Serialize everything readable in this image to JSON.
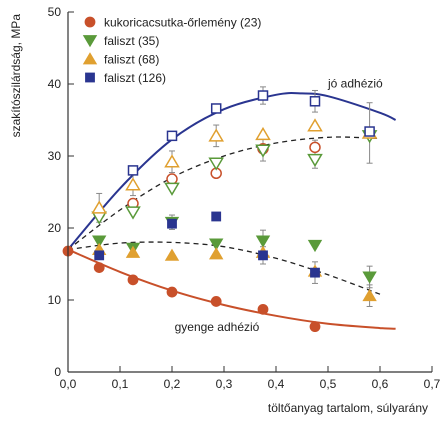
{
  "chart_data": {
    "type": "scatter",
    "xlabel": "töltőanyag tartalom, súlyarány",
    "ylabel": "szakítószilárdság, MPa",
    "xlim": [
      0.0,
      0.7
    ],
    "ylim": [
      0,
      50
    ],
    "x_ticks": [
      "0,0",
      "0,1",
      "0,2",
      "0,3",
      "0,4",
      "0,5",
      "0,6",
      "0,7"
    ],
    "y_ticks": [
      "0",
      "10",
      "20",
      "30",
      "40",
      "50"
    ],
    "grid": false,
    "legend_position": "top-left",
    "series": [
      {
        "name": "kukoricacsutka-őrlemény (23)",
        "marker": "circle",
        "filled": true,
        "color": "#c8502a",
        "points": [
          [
            0.0,
            16.8
          ],
          [
            0.06,
            14.5
          ],
          [
            0.125,
            12.8
          ],
          [
            0.2,
            11.1
          ],
          [
            0.285,
            9.8
          ],
          [
            0.375,
            8.7
          ],
          [
            0.475,
            6.3
          ]
        ]
      },
      {
        "name": "faliszt (35)",
        "marker": "triangle-down",
        "filled": true,
        "color": "#5a9a3a",
        "points": [
          [
            0.06,
            18.2
          ],
          [
            0.125,
            17.2
          ],
          [
            0.2,
            20.8
          ],
          [
            0.285,
            17.8
          ],
          [
            0.375,
            18.2
          ],
          [
            0.475,
            17.6
          ],
          [
            0.58,
            13.2
          ]
        ]
      },
      {
        "name": "faliszt (68)",
        "marker": "triangle",
        "filled": true,
        "color": "#e0a030",
        "points": [
          [
            0.06,
            17.0
          ],
          [
            0.125,
            16.6
          ],
          [
            0.2,
            16.2
          ],
          [
            0.285,
            16.4
          ],
          [
            0.375,
            16.6
          ],
          [
            0.475,
            14.0
          ],
          [
            0.58,
            10.6
          ]
        ]
      },
      {
        "name": "faliszt (126)",
        "marker": "square",
        "filled": true,
        "color": "#2a3590",
        "points": [
          [
            0.06,
            16.2
          ],
          [
            0.2,
            20.6
          ],
          [
            0.285,
            21.6
          ],
          [
            0.375,
            16.2
          ],
          [
            0.475,
            13.8
          ]
        ]
      },
      {
        "marker": "circle",
        "filled": false,
        "color": "#c8502a",
        "points": [
          [
            0.06,
            22.0
          ],
          [
            0.125,
            23.4
          ],
          [
            0.2,
            26.8
          ],
          [
            0.285,
            27.6
          ],
          [
            0.375,
            31.0
          ],
          [
            0.475,
            31.2
          ]
        ]
      },
      {
        "marker": "triangle-down",
        "filled": false,
        "color": "#5a9a3a",
        "points": [
          [
            0.06,
            21.5
          ],
          [
            0.125,
            22.2
          ],
          [
            0.2,
            25.5
          ],
          [
            0.285,
            29.0
          ],
          [
            0.375,
            30.8
          ],
          [
            0.475,
            29.5
          ],
          [
            0.58,
            32.8
          ]
        ]
      },
      {
        "marker": "triangle",
        "filled": false,
        "color": "#e0a030",
        "points": [
          [
            0.06,
            22.8
          ],
          [
            0.125,
            26.0
          ],
          [
            0.2,
            29.2
          ],
          [
            0.285,
            32.8
          ],
          [
            0.375,
            33.0
          ],
          [
            0.475,
            34.2
          ],
          [
            0.58,
            33.2
          ]
        ]
      },
      {
        "marker": "square",
        "filled": false,
        "color": "#2a3590",
        "points": [
          [
            0.125,
            28.0
          ],
          [
            0.2,
            32.8
          ],
          [
            0.285,
            36.6
          ],
          [
            0.375,
            38.4
          ],
          [
            0.475,
            37.6
          ],
          [
            0.58,
            33.4
          ]
        ]
      }
    ],
    "error_bars": [
      [
        0.06,
        22.8,
        2.0
      ],
      [
        0.125,
        26.0,
        1.5
      ],
      [
        0.2,
        29.2,
        1.5
      ],
      [
        0.285,
        32.8,
        1.5
      ],
      [
        0.375,
        38.4,
        1.2
      ],
      [
        0.475,
        37.6,
        1.5
      ],
      [
        0.58,
        33.2,
        4.2
      ],
      [
        0.375,
        30.8,
        1.5
      ],
      [
        0.475,
        31.2,
        1.0
      ],
      [
        0.475,
        29.5,
        1.2
      ],
      [
        0.2,
        20.8,
        1.0
      ],
      [
        0.375,
        18.2,
        1.5
      ],
      [
        0.58,
        13.2,
        1.5
      ],
      [
        0.475,
        13.8,
        1.5
      ],
      [
        0.375,
        16.2,
        1.2
      ],
      [
        0.58,
        10.6,
        1.5
      ]
    ],
    "curves": [
      {
        "style": "solid",
        "color": "#2a3590",
        "points": [
          [
            0.0,
            17.0
          ],
          [
            0.1,
            25.5
          ],
          [
            0.2,
            32.3
          ],
          [
            0.3,
            36.5
          ],
          [
            0.4,
            38.5
          ],
          [
            0.45,
            38.7
          ],
          [
            0.5,
            38.3
          ],
          [
            0.6,
            36.0
          ],
          [
            0.63,
            35.0
          ]
        ]
      },
      {
        "style": "dashed",
        "color": "#222222",
        "points": [
          [
            0.0,
            17.0
          ],
          [
            0.1,
            22.5
          ],
          [
            0.2,
            27.0
          ],
          [
            0.3,
            30.0
          ],
          [
            0.4,
            31.8
          ],
          [
            0.5,
            32.6
          ],
          [
            0.58,
            32.5
          ],
          [
            0.6,
            32.4
          ]
        ]
      },
      {
        "style": "dashed",
        "color": "#222222",
        "points": [
          [
            0.0,
            17.0
          ],
          [
            0.1,
            17.9
          ],
          [
            0.2,
            18.0
          ],
          [
            0.3,
            17.4
          ],
          [
            0.4,
            15.8
          ],
          [
            0.5,
            13.5
          ],
          [
            0.6,
            10.8
          ]
        ]
      },
      {
        "style": "solid",
        "color": "#c8502a",
        "points": [
          [
            0.0,
            17.0
          ],
          [
            0.1,
            13.9
          ],
          [
            0.2,
            11.3
          ],
          [
            0.3,
            9.3
          ],
          [
            0.4,
            7.8
          ],
          [
            0.5,
            6.7
          ],
          [
            0.6,
            6.1
          ],
          [
            0.63,
            6.0
          ]
        ]
      }
    ],
    "annotations": [
      {
        "text": "jó adhézió",
        "x": 0.5,
        "y": 39.5
      },
      {
        "text": "gyenge adhézió",
        "x": 0.205,
        "y": 5.7
      }
    ]
  }
}
